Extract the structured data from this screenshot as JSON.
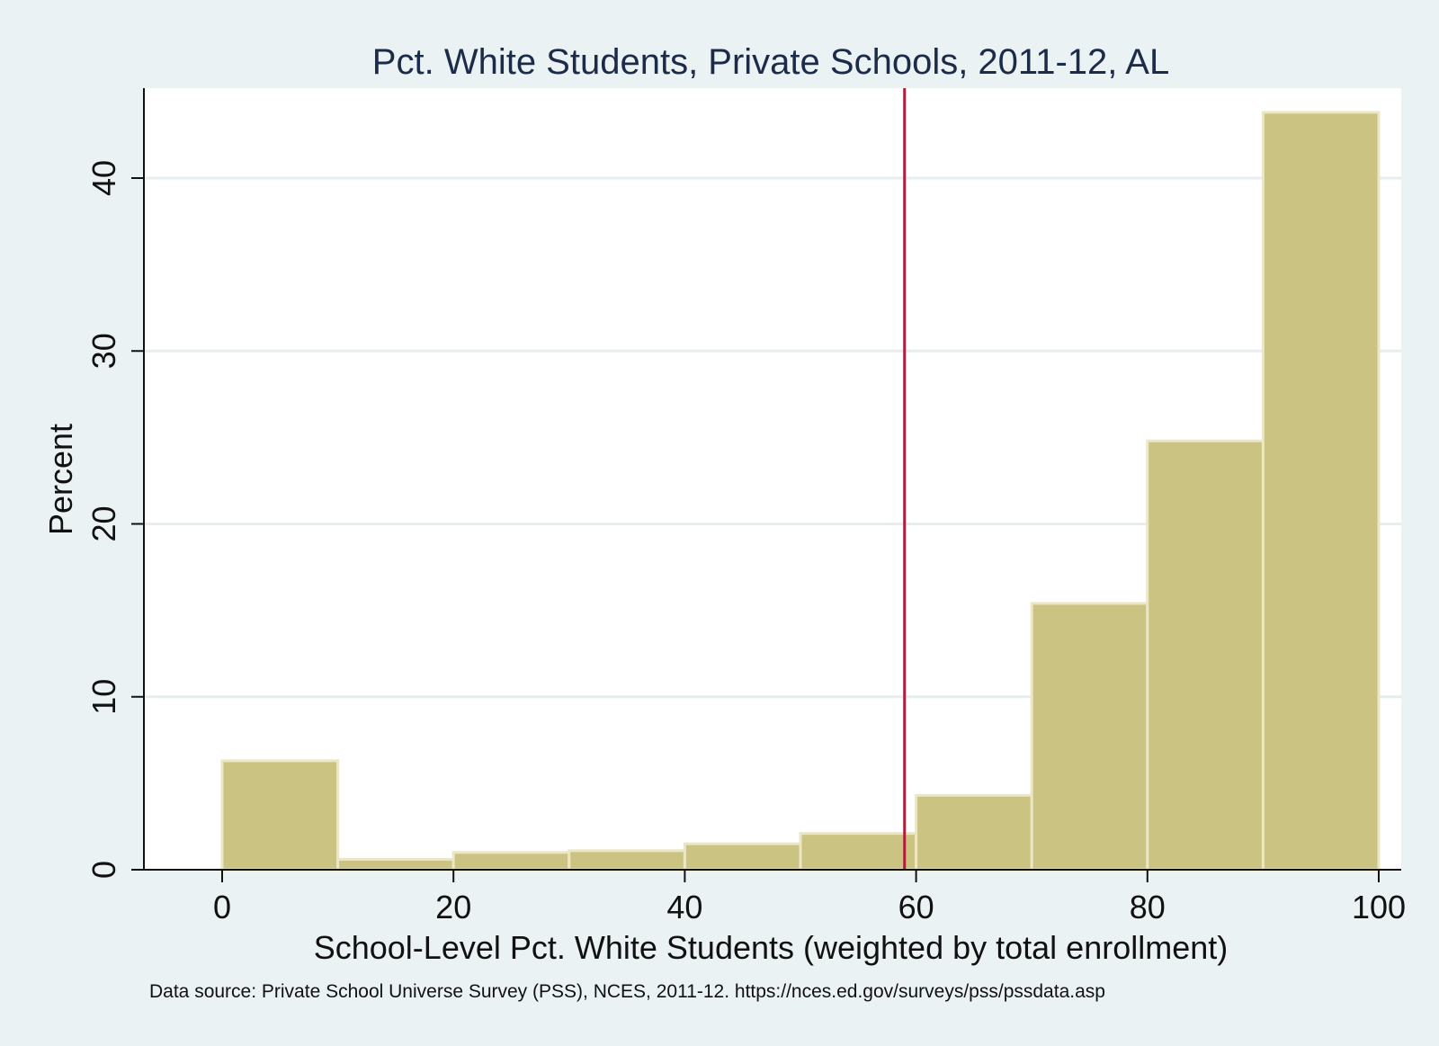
{
  "chart_data": {
    "type": "bar",
    "subtype": "histogram",
    "title": "Pct. White Students, Private Schools, 2011-12, AL",
    "xlabel": "School-Level Pct. White Students (weighted by total enrollment)",
    "ylabel": "Percent",
    "note": "Data source: Private School Universe Survey (PSS), NCES, 2011-12. https://nces.ed.gov/surveys/pss/pssdata.asp",
    "bins": [
      {
        "from": 0,
        "to": 10,
        "value": 6.3
      },
      {
        "from": 10,
        "to": 20,
        "value": 0.6
      },
      {
        "from": 20,
        "to": 30,
        "value": 1.0
      },
      {
        "from": 30,
        "to": 40,
        "value": 1.1
      },
      {
        "from": 40,
        "to": 50,
        "value": 1.5
      },
      {
        "from": 50,
        "to": 60,
        "value": 2.1
      },
      {
        "from": 60,
        "to": 70,
        "value": 4.3
      },
      {
        "from": 70,
        "to": 80,
        "value": 15.4
      },
      {
        "from": 80,
        "to": 90,
        "value": 24.8
      },
      {
        "from": 90,
        "to": 100,
        "value": 43.8
      }
    ],
    "reference_line_x": 59,
    "xlim": [
      -7.7,
      102
    ],
    "ylim": [
      0,
      45
    ],
    "xticks": [
      "0",
      "20",
      "40",
      "60",
      "80",
      "100"
    ],
    "yticks": [
      "0",
      "10",
      "20",
      "30",
      "40"
    ],
    "grid": true,
    "colors": {
      "bar_fill": "#cbc382",
      "bar_edge": "#ebe6c4",
      "reference_line": "#b01c3c",
      "plot_background": "#ffffff",
      "page_background": "#eaf2f3",
      "gridline": "#e6eef0",
      "title": "#1c2b4a"
    }
  }
}
